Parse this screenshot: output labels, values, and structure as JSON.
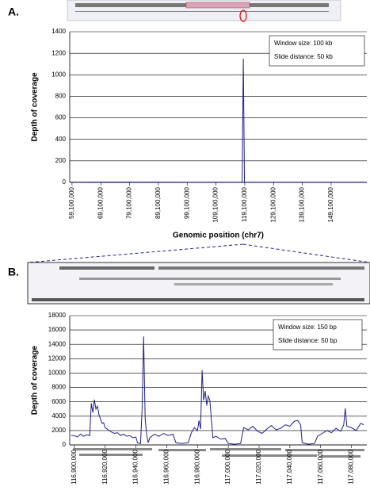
{
  "chart_data": [
    {
      "type": "line",
      "panel_label": "A.",
      "y_label": "Depth of coverage",
      "x_label": "Genomic position (chr7)",
      "annotations": [
        "Window size: 100 kb",
        "Slide distance: 50 kb"
      ],
      "color": "#1f1f8f",
      "grid": true,
      "x": [
        58300000,
        80000000,
        100000000,
        118200000,
        118600000,
        119000000,
        140000000,
        161500000
      ],
      "values": [
        2,
        3,
        2,
        3,
        1150,
        3,
        2,
        2
      ],
      "xlim": [
        58300000,
        161500000
      ],
      "ylim": [
        0,
        1400
      ],
      "yticks": [
        0,
        200,
        400,
        600,
        800,
        1000,
        1200,
        1400
      ],
      "xticks": [
        {
          "value": 59100000,
          "label": "59,100,000"
        },
        {
          "value": 69100000,
          "label": "69,100,000"
        },
        {
          "value": 79100000,
          "label": "79,100,000"
        },
        {
          "value": 89100000,
          "label": "89,100,000"
        },
        {
          "value": 99100000,
          "label": "99,100,000"
        },
        {
          "value": 109100000,
          "label": "109,100,000"
        },
        {
          "value": 119100000,
          "label": "119,100,000"
        },
        {
          "value": 129100000,
          "label": "129,100,000"
        },
        {
          "value": 139100000,
          "label": "139,100,000"
        },
        {
          "value": 149100000,
          "label": "149,100,000"
        }
      ]
    },
    {
      "type": "line",
      "panel_label": "B.",
      "y_label": "Depth of coverage",
      "annotations": [
        "Window size: 150 bp",
        "Slide distance: 50 bp"
      ],
      "color": "#1f1f8f",
      "grid": true,
      "x": [
        116898000,
        116900000,
        116902000,
        116904000,
        116906000,
        116908000,
        116910000,
        116911000,
        116912000,
        116913000,
        116914000,
        116915000,
        116916000,
        116917000,
        116918000,
        116919000,
        116920000,
        116922000,
        116924000,
        116926000,
        116928000,
        116930000,
        116932000,
        116934000,
        116936000,
        116938000,
        116940000,
        116941000,
        116943000,
        116944000,
        116945000,
        116946000,
        116947000,
        116948000,
        116949000,
        116952000,
        116955000,
        116958000,
        116961000,
        116964000,
        116966000,
        116970000,
        116974000,
        116976000,
        116978000,
        116980000,
        116981000,
        116982000,
        116983000,
        116984000,
        116985000,
        116986000,
        116987000,
        116988000,
        116990000,
        116992000,
        116995000,
        116998000,
        117000000,
        117004000,
        117008000,
        117010000,
        117013000,
        117016000,
        117019000,
        117022000,
        117025000,
        117028000,
        117031000,
        117034000,
        117037000,
        117040000,
        117043000,
        117045000,
        117047000,
        117048000,
        117052000,
        117056000,
        117058000,
        117061000,
        117064000,
        117067000,
        117070000,
        117073000,
        117075000,
        117076000,
        117077000,
        117080000,
        117083000,
        117086000,
        117088000
      ],
      "values": [
        1300,
        1300,
        1100,
        1500,
        1200,
        1400,
        1300,
        5800,
        4500,
        6300,
        5000,
        5400,
        4200,
        3600,
        3000,
        3100,
        2400,
        2100,
        1800,
        1600,
        1700,
        1300,
        1500,
        1200,
        1300,
        1000,
        1100,
        300,
        200,
        4900,
        15100,
        3600,
        1400,
        300,
        1000,
        1500,
        1200,
        1600,
        1300,
        1500,
        300,
        200,
        300,
        1700,
        2400,
        2000,
        3400,
        2200,
        10400,
        6200,
        7500,
        5500,
        6800,
        6200,
        1000,
        1200,
        800,
        900,
        200,
        100,
        200,
        2400,
        2100,
        2600,
        1900,
        1600,
        2200,
        2700,
        2100,
        2300,
        2800,
        2600,
        3300,
        3400,
        2800,
        300,
        100,
        200,
        1200,
        1600,
        2000,
        1700,
        2300,
        1900,
        2800,
        5100,
        2600,
        2400,
        2000,
        3000,
        2800
      ],
      "xlim": [
        116897000,
        117090000
      ],
      "ylim": [
        0,
        18000
      ],
      "yticks": [
        0,
        2000,
        4000,
        6000,
        8000,
        10000,
        12000,
        14000,
        16000,
        18000
      ],
      "xticks": [
        {
          "value": 116900000,
          "label": "116,900,000"
        },
        {
          "value": 116920000,
          "label": "116,920,000"
        },
        {
          "value": 116940000,
          "label": "116,940,000"
        },
        {
          "value": 116960000,
          "label": "116,960,000"
        },
        {
          "value": 116980000,
          "label": "116,980,000"
        },
        {
          "value": 117000000,
          "label": "117,000,000"
        },
        {
          "value": 117020000,
          "label": "117,020,000"
        },
        {
          "value": 117040000,
          "label": "117,040,000"
        },
        {
          "value": 117060000,
          "label": "117,060,000"
        },
        {
          "value": 117080000,
          "label": "117,080,000"
        }
      ]
    }
  ]
}
